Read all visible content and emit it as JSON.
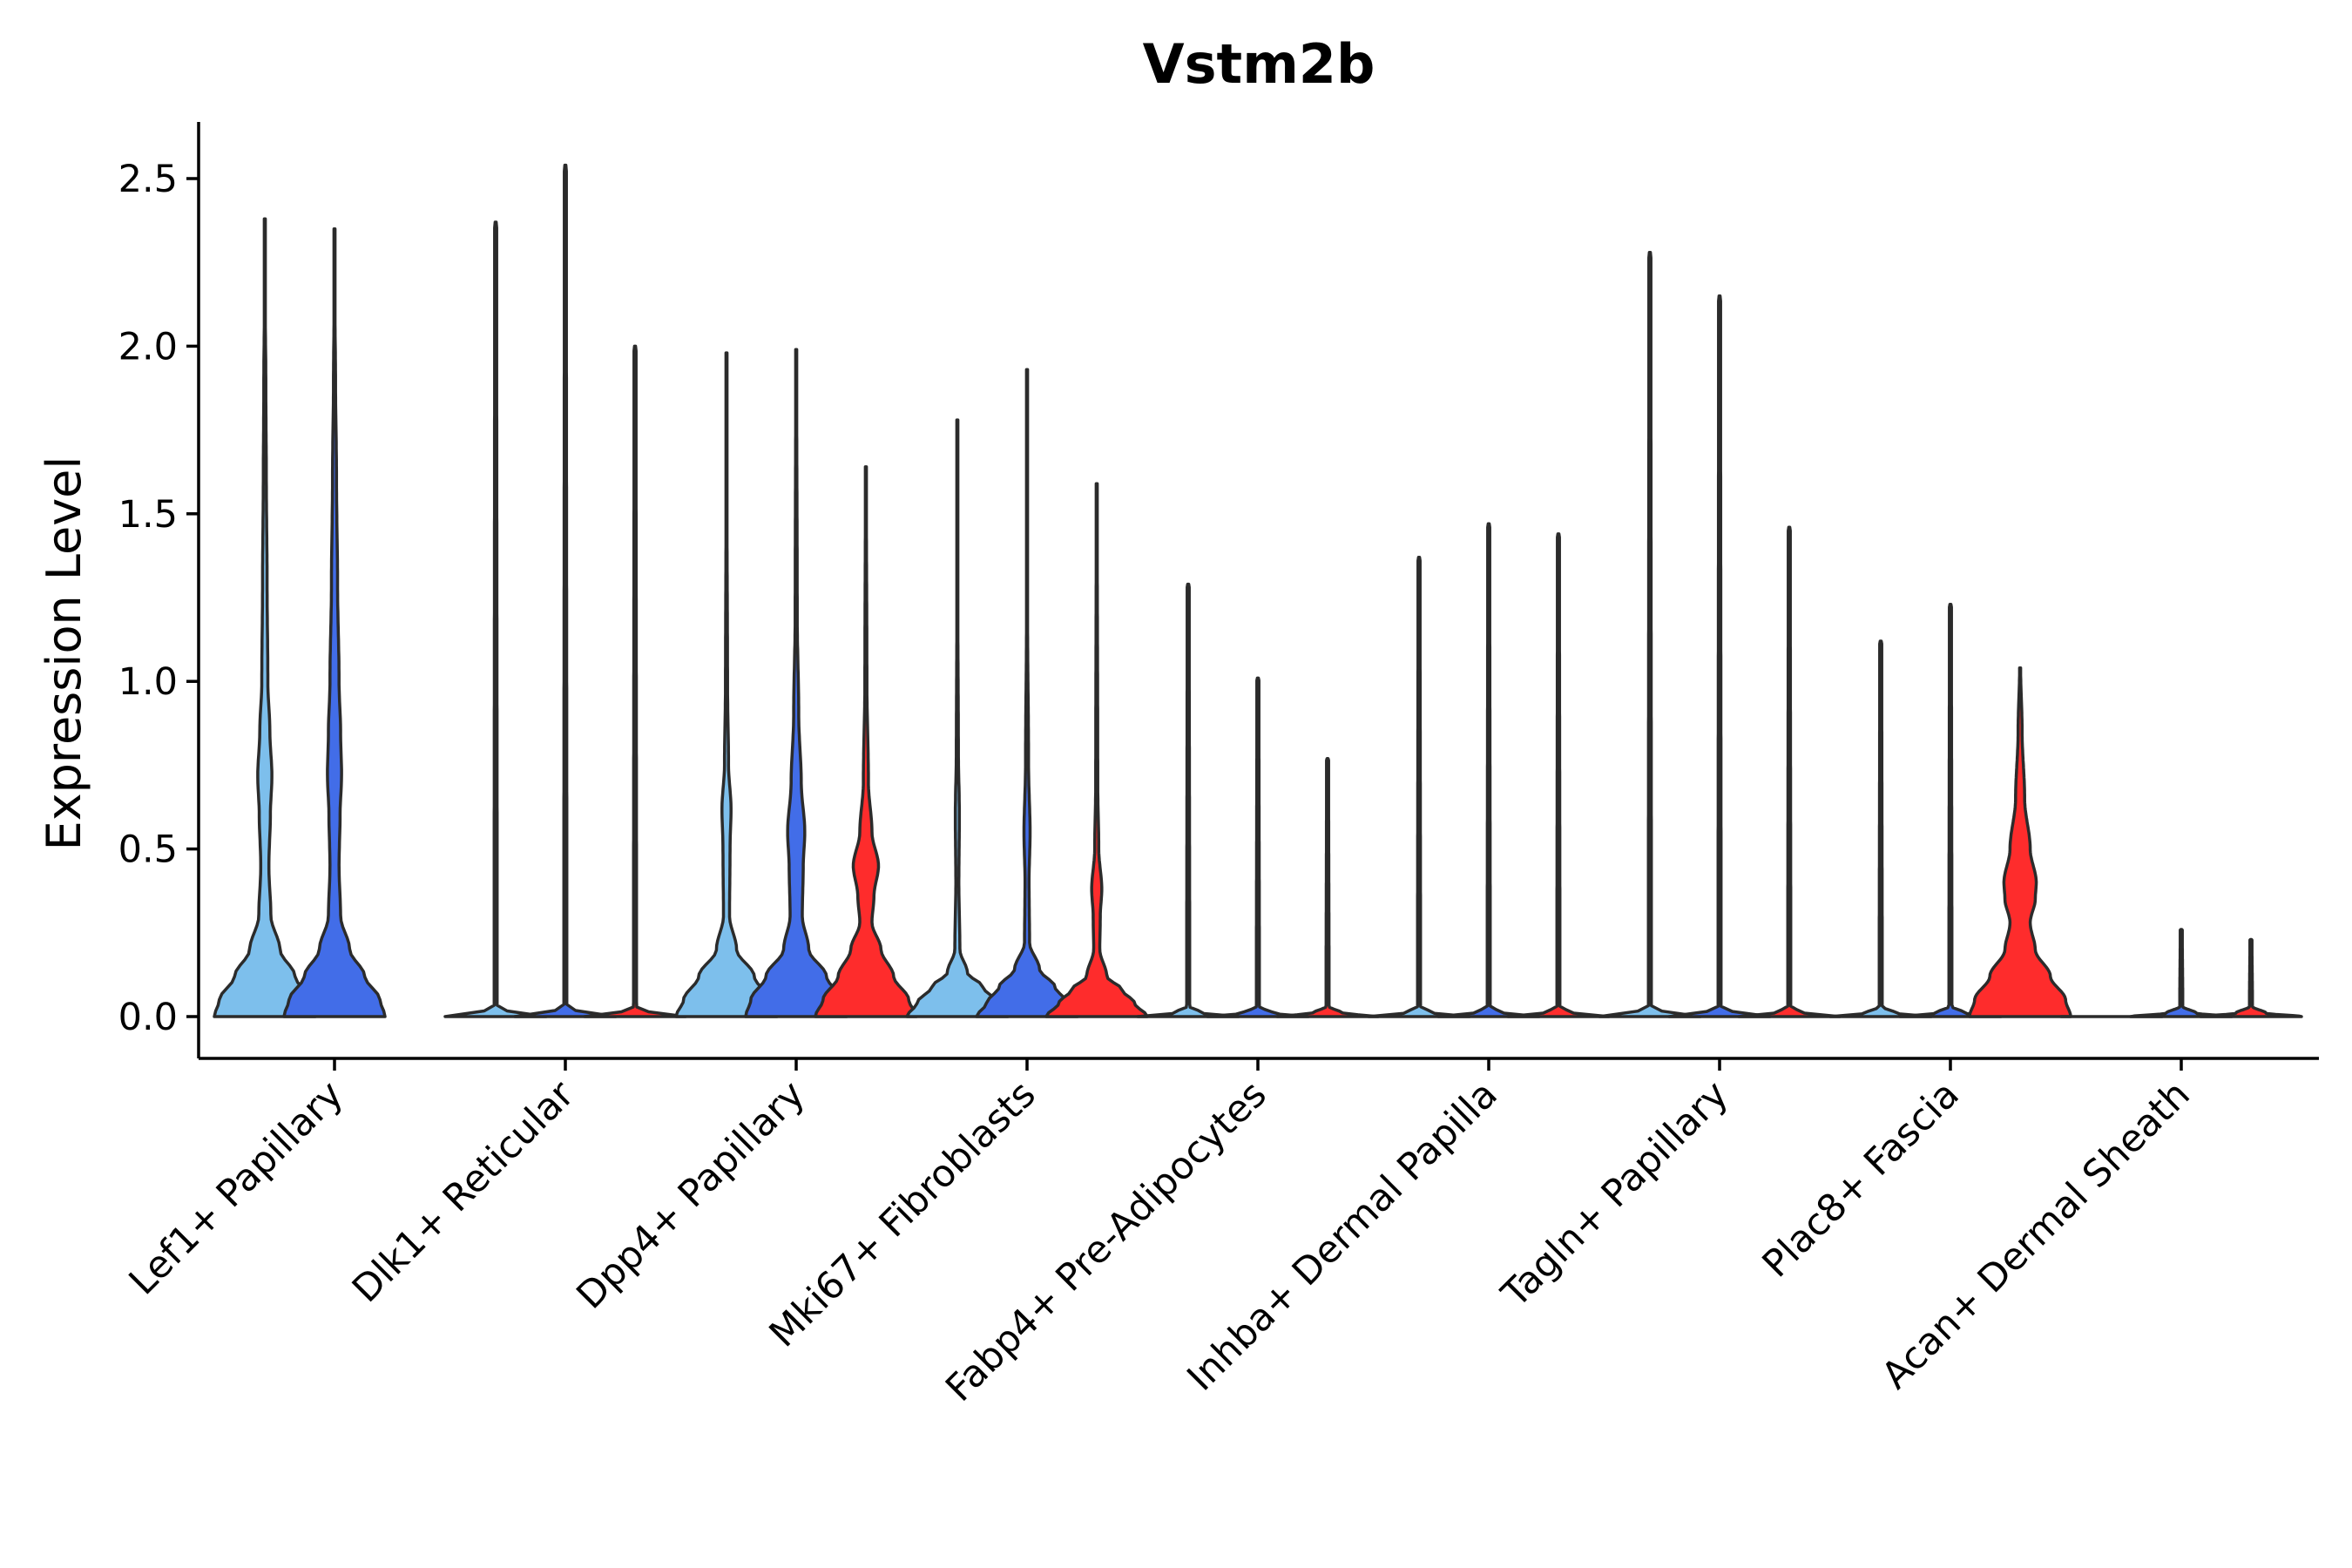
{
  "chart_data": {
    "type": "violin",
    "title": "Vstm2b",
    "xlabel": "",
    "ylabel": "Expression Level",
    "ylim": [
      -0.12,
      2.67
    ],
    "yticks": [
      0.0,
      0.5,
      1.0,
      1.5,
      2.0,
      2.5
    ],
    "ytick_labels": [
      "0.0",
      "0.5",
      "1.0",
      "1.5",
      "2.0",
      "2.5"
    ],
    "categories": [
      "Lef1+ Papillary",
      "Dlk1+ Reticular",
      "Dpp4+ Papillary",
      "Mki67+ Fibroblasts",
      "Fabp4+ Pre-Adipocytes",
      "Inhba+ Dermal Papilla",
      "Tagln+ Papillary",
      "Plac8+ Fascia",
      "Acan+ Dermal Sheath"
    ],
    "series_colors": [
      "#7dbfec",
      "#426de8",
      "#fe2c2c"
    ],
    "violins": [
      {
        "category": 0,
        "sub": 0,
        "color": "#7dbfec",
        "max": 2.38,
        "profile": [
          [
            0,
            1
          ],
          [
            0.05,
            0.9
          ],
          [
            0.12,
            0.6
          ],
          [
            0.2,
            0.3
          ],
          [
            0.3,
            0.12
          ],
          [
            0.45,
            0.08
          ],
          [
            0.6,
            0.11
          ],
          [
            0.72,
            0.14
          ],
          [
            0.85,
            0.1
          ],
          [
            1.0,
            0.06
          ],
          [
            1.3,
            0.045
          ],
          [
            1.6,
            0.03
          ],
          [
            1.9,
            0.02
          ],
          [
            2.1,
            0.01
          ],
          [
            2.38,
            0.008
          ]
        ]
      },
      {
        "category": 0,
        "sub": 1,
        "color": "#426de8",
        "max": 2.35,
        "profile": [
          [
            0,
            1
          ],
          [
            0.05,
            0.9
          ],
          [
            0.12,
            0.6
          ],
          [
            0.2,
            0.3
          ],
          [
            0.3,
            0.12
          ],
          [
            0.45,
            0.09
          ],
          [
            0.6,
            0.11
          ],
          [
            0.72,
            0.14
          ],
          [
            0.85,
            0.12
          ],
          [
            1.0,
            0.09
          ],
          [
            1.3,
            0.06
          ],
          [
            1.6,
            0.04
          ],
          [
            1.9,
            0.02
          ],
          [
            2.1,
            0.01
          ],
          [
            2.35,
            0.008
          ]
        ]
      },
      {
        "category": 1,
        "sub": 0,
        "color": "#7dbfec",
        "max": 2.37,
        "profile": [
          [
            0,
            1
          ],
          [
            0.01,
            0.3
          ],
          [
            0.03,
            0.03
          ],
          [
            2.37,
            0.02
          ]
        ]
      },
      {
        "category": 1,
        "sub": 1,
        "color": "#426de8",
        "max": 2.54,
        "profile": [
          [
            0,
            1
          ],
          [
            0.01,
            0.3
          ],
          [
            0.03,
            0.03
          ],
          [
            2.54,
            0.02
          ]
        ]
      },
      {
        "category": 1,
        "sub": 2,
        "color": "#fe2c2c",
        "max": 2.0,
        "profile": [
          [
            0,
            1
          ],
          [
            0.01,
            0.3
          ],
          [
            0.03,
            0.03
          ],
          [
            2.0,
            0.02
          ]
        ]
      },
      {
        "category": 2,
        "sub": 0,
        "color": "#7dbfec",
        "max": 1.98,
        "profile": [
          [
            0,
            1
          ],
          [
            0.05,
            0.85
          ],
          [
            0.12,
            0.55
          ],
          [
            0.2,
            0.2
          ],
          [
            0.3,
            0.06
          ],
          [
            0.5,
            0.07
          ],
          [
            0.62,
            0.09
          ],
          [
            0.75,
            0.04
          ],
          [
            1.0,
            0.02
          ],
          [
            1.5,
            0.01
          ],
          [
            1.98,
            0.008
          ]
        ]
      },
      {
        "category": 2,
        "sub": 1,
        "color": "#426de8",
        "max": 1.99,
        "profile": [
          [
            0,
            1
          ],
          [
            0.05,
            0.9
          ],
          [
            0.12,
            0.6
          ],
          [
            0.2,
            0.25
          ],
          [
            0.3,
            0.12
          ],
          [
            0.45,
            0.14
          ],
          [
            0.55,
            0.17
          ],
          [
            0.7,
            0.1
          ],
          [
            0.9,
            0.05
          ],
          [
            1.2,
            0.02
          ],
          [
            1.99,
            0.008
          ]
        ]
      },
      {
        "category": 2,
        "sub": 2,
        "color": "#fe2c2c",
        "max": 1.64,
        "profile": [
          [
            0,
            1
          ],
          [
            0.05,
            0.85
          ],
          [
            0.12,
            0.55
          ],
          [
            0.2,
            0.3
          ],
          [
            0.28,
            0.12
          ],
          [
            0.36,
            0.16
          ],
          [
            0.45,
            0.25
          ],
          [
            0.55,
            0.12
          ],
          [
            0.7,
            0.05
          ],
          [
            1.0,
            0.02
          ],
          [
            1.64,
            0.008
          ]
        ]
      },
      {
        "category": 3,
        "sub": 0,
        "color": "#7dbfec",
        "max": 1.78,
        "profile": [
          [
            0,
            1
          ],
          [
            0.04,
            0.8
          ],
          [
            0.09,
            0.5
          ],
          [
            0.13,
            0.2
          ],
          [
            0.2,
            0.05
          ],
          [
            0.4,
            0.03
          ],
          [
            0.6,
            0.04
          ],
          [
            0.8,
            0.02
          ],
          [
            1.2,
            0.01
          ],
          [
            1.78,
            0.008
          ]
        ]
      },
      {
        "category": 3,
        "sub": 1,
        "color": "#426de8",
        "max": 1.93,
        "profile": [
          [
            0,
            1
          ],
          [
            0.04,
            0.8
          ],
          [
            0.09,
            0.55
          ],
          [
            0.14,
            0.25
          ],
          [
            0.22,
            0.05
          ],
          [
            0.4,
            0.04
          ],
          [
            0.55,
            0.06
          ],
          [
            0.75,
            0.03
          ],
          [
            1.2,
            0.01
          ],
          [
            1.93,
            0.008
          ]
        ]
      },
      {
        "category": 3,
        "sub": 2,
        "color": "#fe2c2c",
        "max": 1.59,
        "profile": [
          [
            0,
            1
          ],
          [
            0.04,
            0.75
          ],
          [
            0.08,
            0.5
          ],
          [
            0.12,
            0.2
          ],
          [
            0.2,
            0.06
          ],
          [
            0.3,
            0.07
          ],
          [
            0.38,
            0.1
          ],
          [
            0.5,
            0.04
          ],
          [
            0.7,
            0.02
          ],
          [
            1.59,
            0.008
          ]
        ]
      },
      {
        "category": 4,
        "sub": 0,
        "color": "#7dbfec",
        "max": 1.29,
        "profile": [
          [
            0,
            1
          ],
          [
            0.01,
            0.3
          ],
          [
            0.03,
            0.03
          ],
          [
            1.29,
            0.02
          ]
        ]
      },
      {
        "category": 4,
        "sub": 1,
        "color": "#426de8",
        "max": 1.01,
        "profile": [
          [
            0,
            1
          ],
          [
            0.01,
            0.3
          ],
          [
            0.03,
            0.03
          ],
          [
            1.01,
            0.02
          ]
        ]
      },
      {
        "category": 4,
        "sub": 2,
        "color": "#fe2c2c",
        "max": 0.77,
        "profile": [
          [
            0,
            1
          ],
          [
            0.01,
            0.3
          ],
          [
            0.03,
            0.03
          ],
          [
            0.77,
            0.02
          ]
        ]
      },
      {
        "category": 5,
        "sub": 0,
        "color": "#7dbfec",
        "max": 1.37,
        "profile": [
          [
            0,
            1
          ],
          [
            0.01,
            0.3
          ],
          [
            0.03,
            0.03
          ],
          [
            1.37,
            0.02
          ]
        ]
      },
      {
        "category": 5,
        "sub": 1,
        "color": "#426de8",
        "max": 1.47,
        "profile": [
          [
            0,
            1
          ],
          [
            0.01,
            0.3
          ],
          [
            0.03,
            0.03
          ],
          [
            1.47,
            0.02
          ]
        ]
      },
      {
        "category": 5,
        "sub": 2,
        "color": "#fe2c2c",
        "max": 1.44,
        "profile": [
          [
            0,
            1
          ],
          [
            0.01,
            0.3
          ],
          [
            0.03,
            0.03
          ],
          [
            1.44,
            0.02
          ]
        ]
      },
      {
        "category": 6,
        "sub": 0,
        "color": "#7dbfec",
        "max": 2.28,
        "profile": [
          [
            0,
            1
          ],
          [
            0.01,
            0.3
          ],
          [
            0.03,
            0.03
          ],
          [
            2.28,
            0.02
          ]
        ]
      },
      {
        "category": 6,
        "sub": 1,
        "color": "#426de8",
        "max": 2.15,
        "profile": [
          [
            0,
            1
          ],
          [
            0.01,
            0.3
          ],
          [
            0.03,
            0.03
          ],
          [
            2.15,
            0.02
          ]
        ]
      },
      {
        "category": 6,
        "sub": 2,
        "color": "#fe2c2c",
        "max": 1.46,
        "profile": [
          [
            0,
            1
          ],
          [
            0.01,
            0.3
          ],
          [
            0.03,
            0.03
          ],
          [
            1.46,
            0.02
          ]
        ]
      },
      {
        "category": 7,
        "sub": 0,
        "color": "#7dbfec",
        "max": 1.12,
        "profile": [
          [
            0,
            1
          ],
          [
            0.01,
            0.3
          ],
          [
            0.03,
            0.03
          ],
          [
            1.12,
            0.02
          ]
        ]
      },
      {
        "category": 7,
        "sub": 1,
        "color": "#426de8",
        "max": 1.23,
        "profile": [
          [
            0,
            1
          ],
          [
            0.01,
            0.3
          ],
          [
            0.03,
            0.03
          ],
          [
            1.23,
            0.02
          ]
        ]
      },
      {
        "category": 7,
        "sub": 2,
        "color": "#fe2c2c",
        "max": 1.04,
        "profile": [
          [
            0,
            1
          ],
          [
            0.05,
            0.9
          ],
          [
            0.12,
            0.6
          ],
          [
            0.2,
            0.3
          ],
          [
            0.28,
            0.2
          ],
          [
            0.35,
            0.3
          ],
          [
            0.4,
            0.32
          ],
          [
            0.5,
            0.2
          ],
          [
            0.65,
            0.09
          ],
          [
            0.85,
            0.04
          ],
          [
            1.04,
            0.01
          ]
        ]
      },
      {
        "category": 8,
        "sub": 0,
        "color": "#7dbfec",
        "max": 0.0,
        "profile": [
          [
            0,
            1
          ],
          [
            0.01,
            0.3
          ]
        ]
      },
      {
        "category": 8,
        "sub": 1,
        "color": "#426de8",
        "max": 0.26,
        "profile": [
          [
            0,
            1
          ],
          [
            0.01,
            0.3
          ],
          [
            0.03,
            0.03
          ],
          [
            0.26,
            0.02
          ]
        ]
      },
      {
        "category": 8,
        "sub": 2,
        "color": "#fe2c2c",
        "max": 0.23,
        "profile": [
          [
            0,
            1
          ],
          [
            0.01,
            0.3
          ],
          [
            0.03,
            0.03
          ],
          [
            0.23,
            0.02
          ]
        ]
      }
    ]
  }
}
